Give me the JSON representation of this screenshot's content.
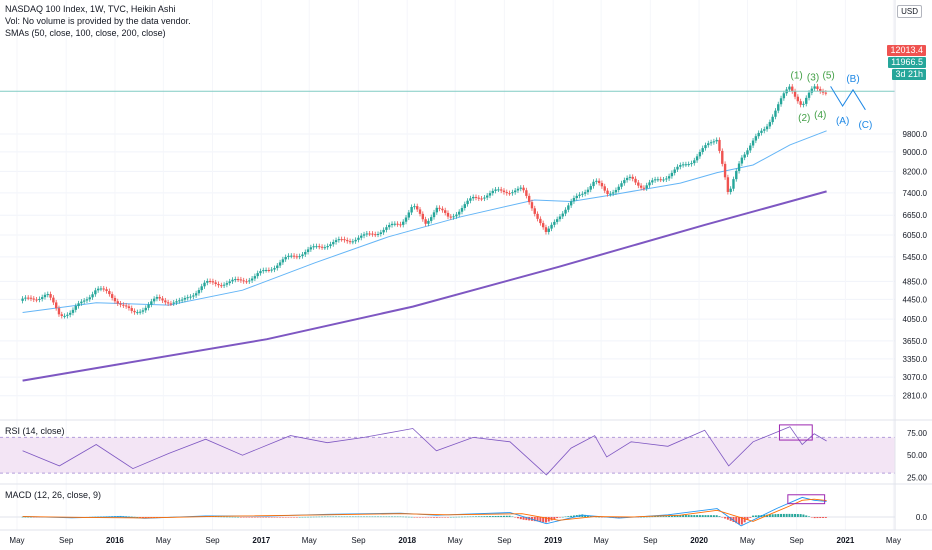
{
  "legend": {
    "title": "NASDAQ 100 Index, 1W, TVC, Heikin Ashi",
    "vol": "Vol: No volume is provided by the data vendor.",
    "smas": "SMAs (50, close, 100, close, 200, close)",
    "rsi": "RSI (14, close)",
    "macd": "MACD (12, 26, close, 9)"
  },
  "currency": "USD",
  "tags": {
    "last_price": "12013.4",
    "sma_price": "11966.5",
    "countdown": "3d 21h"
  },
  "colors": {
    "up": "#26a69a",
    "down": "#ef5350",
    "sma50": "#64b5f6",
    "sma200": "#7e57c2",
    "rsi": "#7e57c2",
    "rsi_band": "#f3e5f5",
    "macd": "#2196f3",
    "signal": "#ff6d00",
    "wave_impulse": "#43a047",
    "wave_correction": "#1e88e5",
    "box": "#9c27b0",
    "hline": "#80cbc4"
  },
  "chart_data": [
    {
      "type": "candlestick",
      "title": "NASDAQ 100 Index, 1W, TVC, Heikin Ashi",
      "yscale": "log",
      "ylim": [
        2600,
        15200
      ],
      "y_ticks": [
        "12013.4",
        "11966.5",
        "9800.0",
        "9000.0",
        "8200.0",
        "7400.0",
        "6650.0",
        "6050.0",
        "5450.0",
        "4850.0",
        "4450.0",
        "4050.0",
        "3650.0",
        "3350.0",
        "3070.0",
        "2810.0"
      ],
      "x_ticks": [
        "May",
        "Sep",
        "2016",
        "May",
        "Sep",
        "2017",
        "May",
        "Sep",
        "2018",
        "May",
        "Sep",
        "2019",
        "May",
        "Sep",
        "2020",
        "May",
        "Sep",
        "2021",
        "May"
      ],
      "price_path": [
        [
          "2015-05",
          4420
        ],
        [
          "2015-07",
          4550
        ],
        [
          "2015-08",
          4150
        ],
        [
          "2015-09",
          4180
        ],
        [
          "2015-11",
          4680
        ],
        [
          "2015-12",
          4580
        ],
        [
          "2016-02",
          4150
        ],
        [
          "2016-04",
          4450
        ],
        [
          "2016-06",
          4380
        ],
        [
          "2016-08",
          4800
        ],
        [
          "2016-10",
          4820
        ],
        [
          "2016-12",
          4950
        ],
        [
          "2017-03",
          5450
        ],
        [
          "2017-06",
          5800
        ],
        [
          "2017-09",
          6000
        ],
        [
          "2017-12",
          6400
        ],
        [
          "2018-01",
          6950
        ],
        [
          "2018-02",
          6400
        ],
        [
          "2018-03",
          6900
        ],
        [
          "2018-04",
          6550
        ],
        [
          "2018-06",
          7200
        ],
        [
          "2018-08",
          7450
        ],
        [
          "2018-10",
          7500
        ],
        [
          "2018-11",
          6800
        ],
        [
          "2018-12",
          6050
        ],
        [
          "2019-01",
          6650
        ],
        [
          "2019-03",
          7400
        ],
        [
          "2019-04",
          7850
        ],
        [
          "2019-05",
          7350
        ],
        [
          "2019-07",
          7950
        ],
        [
          "2019-08",
          7600
        ],
        [
          "2019-10",
          8050
        ],
        [
          "2019-12",
          8650
        ],
        [
          "2020-02",
          9650
        ],
        [
          "2020-03",
          7200
        ],
        [
          "2020-04",
          8800
        ],
        [
          "2020-06",
          10100
        ],
        [
          "2020-08",
          12300
        ],
        [
          "2020-09",
          11200
        ],
        [
          "2020-10",
          12250
        ],
        [
          "2020-11",
          12013
        ]
      ],
      "sma50_path": [
        [
          "2015-05",
          4180
        ],
        [
          "2015-11",
          4380
        ],
        [
          "2016-05",
          4330
        ],
        [
          "2016-11",
          4650
        ],
        [
          "2017-05",
          5300
        ],
        [
          "2017-11",
          6000
        ],
        [
          "2018-05",
          6600
        ],
        [
          "2018-11",
          7150
        ],
        [
          "2019-02",
          7100
        ],
        [
          "2019-05",
          7300
        ],
        [
          "2019-11",
          7750
        ],
        [
          "2020-02",
          8150
        ],
        [
          "2020-05",
          8450
        ],
        [
          "2020-08",
          9300
        ],
        [
          "2020-11",
          9950
        ]
      ],
      "sma200_path": [
        [
          "2015-05",
          3020
        ],
        [
          "2016-01",
          3270
        ],
        [
          "2017-01",
          3680
        ],
        [
          "2018-01",
          4300
        ],
        [
          "2019-01",
          5200
        ],
        [
          "2020-01",
          6350
        ],
        [
          "2020-11",
          7450
        ]
      ],
      "elliott_impulse": [
        {
          "label": "(1)",
          "date": "2020-09-01",
          "value": 12400
        },
        {
          "label": "(2)",
          "date": "2020-09-20",
          "value": 11150
        },
        {
          "label": "(3)",
          "date": "2020-10-12",
          "value": 12300
        },
        {
          "label": "(4)",
          "date": "2020-10-30",
          "value": 11300
        },
        {
          "label": "(5)",
          "date": "2020-11-20",
          "value": 12400
        }
      ],
      "elliott_correction": [
        {
          "label": "(A)",
          "date": "2020-12-25",
          "value": 11200
        },
        {
          "label": "(B)",
          "date": "2021-01-20",
          "value": 12100
        },
        {
          "label": "(C)",
          "date": "2021-02-20",
          "value": 11000
        }
      ],
      "horizontal_level": 12013.4
    },
    {
      "type": "line",
      "title": "RSI (14, close)",
      "ylim": [
        20,
        85
      ],
      "y_ticks": [
        "75.00",
        "50.00",
        "25.00"
      ],
      "band": [
        30,
        70
      ],
      "values": [
        [
          "2015-05",
          55
        ],
        [
          "2015-08",
          38
        ],
        [
          "2015-11",
          62
        ],
        [
          "2016-02",
          35
        ],
        [
          "2016-05",
          52
        ],
        [
          "2016-08",
          68
        ],
        [
          "2016-11",
          50
        ],
        [
          "2017-03",
          72
        ],
        [
          "2017-06",
          64
        ],
        [
          "2017-09",
          70
        ],
        [
          "2018-01",
          80
        ],
        [
          "2018-03",
          55
        ],
        [
          "2018-06",
          70
        ],
        [
          "2018-09",
          65
        ],
        [
          "2018-12",
          28
        ],
        [
          "2019-02",
          58
        ],
        [
          "2019-04",
          72
        ],
        [
          "2019-05",
          48
        ],
        [
          "2019-07",
          65
        ],
        [
          "2019-10",
          60
        ],
        [
          "2020-01",
          78
        ],
        [
          "2020-03",
          38
        ],
        [
          "2020-05",
          65
        ],
        [
          "2020-08",
          82
        ],
        [
          "2020-09",
          62
        ],
        [
          "2020-10",
          74
        ],
        [
          "2020-11",
          66
        ]
      ]
    },
    {
      "type": "histogram+line",
      "title": "MACD (12, 26, close, 9)",
      "y_ticks": [
        "0.0"
      ],
      "macd_line": [
        [
          "2015-05",
          25
        ],
        [
          "2015-09",
          -35
        ],
        [
          "2016-01",
          15
        ],
        [
          "2016-03",
          -60
        ],
        [
          "2016-08",
          50
        ],
        [
          "2017-01",
          40
        ],
        [
          "2017-06",
          120
        ],
        [
          "2017-12",
          170
        ],
        [
          "2018-03",
          80
        ],
        [
          "2018-09",
          200
        ],
        [
          "2018-12",
          -300
        ],
        [
          "2019-03",
          80
        ],
        [
          "2019-06",
          -50
        ],
        [
          "2019-10",
          100
        ],
        [
          "2020-02",
          380
        ],
        [
          "2020-04",
          -400
        ],
        [
          "2020-07",
          400
        ],
        [
          "2020-09",
          880
        ],
        [
          "2020-10",
          750
        ],
        [
          "2020-11",
          700
        ]
      ],
      "signal_line": [
        [
          "2015-05",
          20
        ],
        [
          "2015-10",
          -20
        ],
        [
          "2016-03",
          -40
        ],
        [
          "2016-09",
          30
        ],
        [
          "2017-06",
          100
        ],
        [
          "2017-12",
          150
        ],
        [
          "2018-04",
          100
        ],
        [
          "2018-10",
          150
        ],
        [
          "2019-01",
          -150
        ],
        [
          "2019-04",
          20
        ],
        [
          "2019-07",
          0
        ],
        [
          "2019-11",
          80
        ],
        [
          "2020-02",
          300
        ],
        [
          "2020-05",
          -200
        ],
        [
          "2020-08",
          500
        ],
        [
          "2020-09",
          750
        ],
        [
          "2020-10",
          800
        ],
        [
          "2020-11",
          740
        ]
      ]
    }
  ]
}
